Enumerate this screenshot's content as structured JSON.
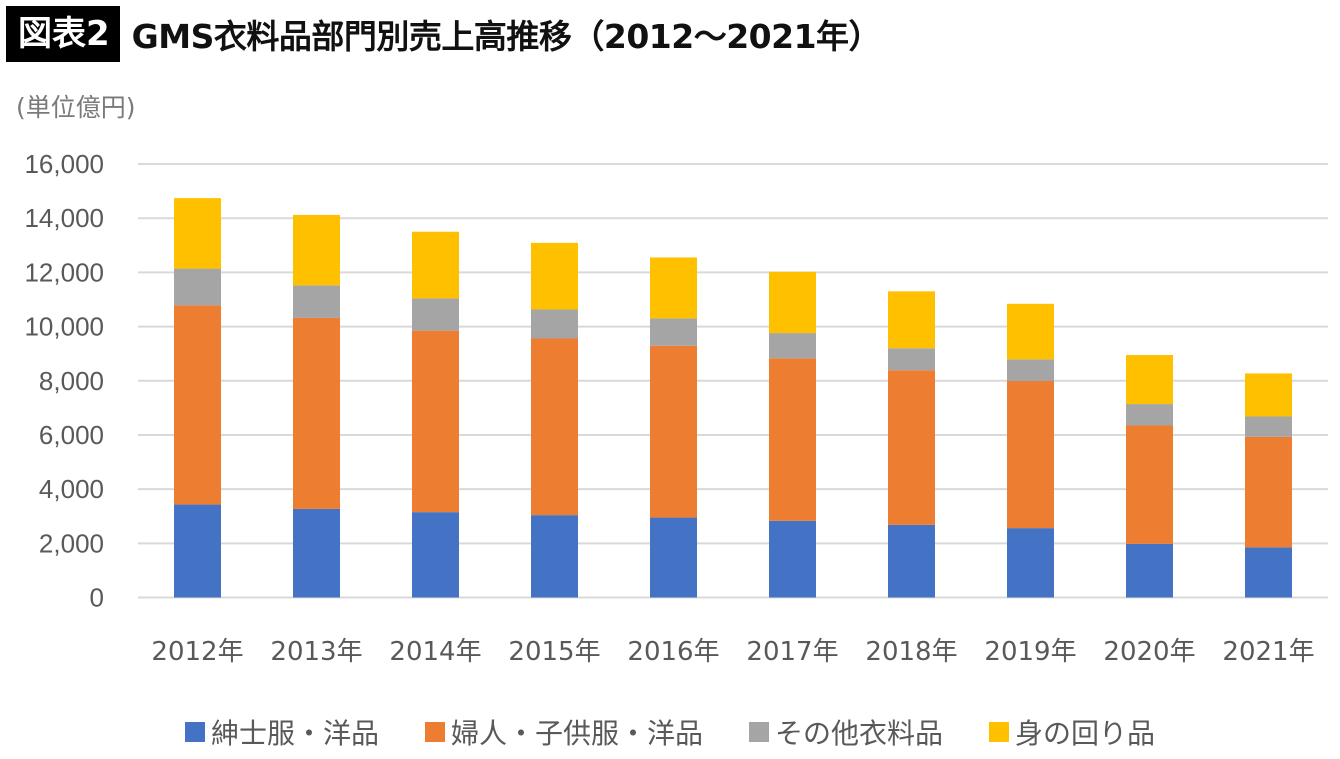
{
  "header": {
    "badge": "図表2",
    "title": "GMS衣料品部門別売上高推移（2012～2021年）"
  },
  "unit_label": "(単位億円)",
  "chart_data": {
    "type": "bar",
    "stacked": true,
    "title": "GMS衣料品部門別売上高推移（2012～2021年）",
    "xlabel": "",
    "ylabel": "(単位億円)",
    "ylim": [
      0,
      16000
    ],
    "yticks": [
      0,
      2000,
      4000,
      6000,
      8000,
      10000,
      12000,
      14000,
      16000
    ],
    "ytick_labels": [
      "0",
      "2,000",
      "4,000",
      "6,000",
      "8,000",
      "10,000",
      "12,000",
      "14,000",
      "16,000"
    ],
    "grid": true,
    "legend_position": "bottom",
    "categories": [
      "2012年",
      "2013年",
      "2014年",
      "2015年",
      "2016年",
      "2017年",
      "2018年",
      "2019年",
      "2020年",
      "2021年"
    ],
    "series": [
      {
        "name": "紳士服・洋品",
        "color": "#4472C4",
        "values": [
          3430,
          3270,
          3150,
          3040,
          2950,
          2830,
          2680,
          2560,
          1980,
          1850
        ]
      },
      {
        "name": "婦人・子供服・洋品",
        "color": "#ED7D31",
        "values": [
          7350,
          7050,
          6700,
          6520,
          6340,
          6000,
          5710,
          5430,
          4370,
          4080
        ]
      },
      {
        "name": "その他衣料品",
        "color": "#A5A5A5",
        "values": [
          1360,
          1200,
          1190,
          1070,
          1010,
          930,
          810,
          800,
          790,
          750
        ]
      },
      {
        "name": "身の回り品",
        "color": "#FFC000",
        "values": [
          2600,
          2600,
          2460,
          2460,
          2250,
          2260,
          2100,
          2050,
          1810,
          1590
        ]
      }
    ]
  }
}
